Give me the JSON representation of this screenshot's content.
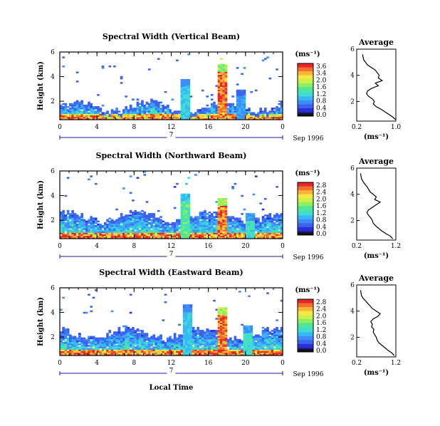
{
  "chart_data": [
    {
      "type": "heatmap",
      "title": "Spectral Width (Vertical Beam)",
      "beam": "vertical",
      "ylabel": "Height (km)",
      "y_ticks": [
        "6",
        "4",
        "2"
      ],
      "xlabel": "",
      "x_ticks": [
        "0",
        "4",
        "8",
        "12",
        "16",
        "20",
        "0"
      ],
      "xlim": [
        0,
        24
      ],
      "ylim": [
        0.5,
        6
      ],
      "date_marker": "7",
      "date_label": "Sep 1996",
      "colorbar": {
        "unit": "(ms⁻¹)",
        "labels": [
          "3.6",
          "3.4",
          "2.0",
          "1.6",
          "1.2",
          "0.8",
          "0.4",
          "0.0"
        ]
      },
      "events": [
        {
          "time": 13.6,
          "top": 3.8,
          "max_width": 1.6
        },
        {
          "time": 17.5,
          "top": 5.0,
          "max_width": 3.6
        },
        {
          "time": 19.6,
          "top": 3.0,
          "max_width": 1.2
        }
      ],
      "average_profile": {
        "title": "Average",
        "xlabel": "(ms⁻¹)",
        "x_ticks": [
          "0.2",
          "1.0"
        ],
        "y_ticks": [
          "6",
          "4",
          "2"
        ],
        "xlim": [
          0.2,
          1.0
        ],
        "ylim": [
          0.5,
          6
        ],
        "height": [
          5.6,
          5.2,
          5.0,
          4.8,
          4.6,
          4.4,
          4.2,
          4.0,
          3.8,
          3.6,
          3.4,
          3.2,
          3.0,
          2.8,
          2.6,
          2.4,
          2.2,
          2.0,
          1.8,
          1.6,
          1.4,
          1.2,
          1.0,
          0.8,
          0.6
        ],
        "width": [
          0.32,
          0.34,
          0.38,
          0.42,
          0.5,
          0.58,
          0.62,
          0.66,
          0.64,
          0.72,
          0.58,
          0.64,
          0.5,
          0.42,
          0.4,
          0.44,
          0.52,
          0.56,
          0.54,
          0.6,
          0.7,
          0.78,
          0.86,
          0.94,
          1.0
        ]
      }
    },
    {
      "type": "heatmap",
      "title": "Spectral Width (Northward Beam)",
      "beam": "northward",
      "ylabel": "Height (km)",
      "y_ticks": [
        "6",
        "4",
        "2"
      ],
      "xlabel": "",
      "x_ticks": [
        "0",
        "4",
        "8",
        "12",
        "16",
        "20",
        "0"
      ],
      "xlim": [
        0,
        24
      ],
      "ylim": [
        0.5,
        6
      ],
      "date_marker": "7",
      "date_label": "Sep 1996",
      "colorbar": {
        "unit": "(ms⁻¹)",
        "labels": [
          "2.8",
          "2.4",
          "2.0",
          "1.6",
          "1.2",
          "0.8",
          "0.4",
          "0.0"
        ]
      },
      "events": [
        {
          "time": 13.6,
          "top": 4.2,
          "max_width": 1.6
        },
        {
          "time": 17.5,
          "top": 3.8,
          "max_width": 2.8
        },
        {
          "time": 20.5,
          "top": 2.6,
          "max_width": 1.4
        }
      ],
      "average_profile": {
        "title": "Average",
        "xlabel": "(ms⁻¹)",
        "x_ticks": [
          "0.2",
          "1.2"
        ],
        "y_ticks": [
          "6",
          "4",
          "2"
        ],
        "xlim": [
          0.2,
          1.2
        ],
        "ylim": [
          0.5,
          6
        ],
        "height": [
          5.6,
          5.2,
          5.0,
          4.8,
          4.6,
          4.4,
          4.2,
          4.0,
          3.8,
          3.6,
          3.4,
          3.2,
          3.0,
          2.8,
          2.6,
          2.4,
          2.2,
          2.0,
          1.8,
          1.6,
          1.4,
          1.2,
          1.0,
          0.8,
          0.6
        ],
        "width": [
          0.3,
          0.32,
          0.36,
          0.4,
          0.46,
          0.5,
          0.54,
          0.62,
          0.7,
          0.66,
          0.8,
          0.7,
          0.6,
          0.5,
          0.46,
          0.5,
          0.56,
          0.6,
          0.62,
          0.68,
          0.76,
          0.84,
          0.94,
          1.06,
          1.12
        ]
      }
    },
    {
      "type": "heatmap",
      "title": "Spectral Width (Eastward Beam)",
      "beam": "eastward",
      "ylabel": "Height (km)",
      "y_ticks": [
        "6",
        "4",
        "2"
      ],
      "xlabel": "Local Time",
      "x_ticks": [
        "0",
        "4",
        "8",
        "12",
        "16",
        "20",
        "0"
      ],
      "xlim": [
        0,
        24
      ],
      "ylim": [
        0.5,
        6
      ],
      "date_marker": "7",
      "date_label": "Sep 1996",
      "colorbar": {
        "unit": "(ms⁻¹)",
        "labels": [
          "2.8",
          "2.4",
          "2.0",
          "1.6",
          "1.2",
          "0.8",
          "0.4",
          "0.0"
        ]
      },
      "events": [
        {
          "time": 13.8,
          "top": 4.6,
          "max_width": 1.2
        },
        {
          "time": 17.5,
          "top": 4.4,
          "max_width": 2.8
        },
        {
          "time": 20.3,
          "top": 2.9,
          "max_width": 1.4
        }
      ],
      "average_profile": {
        "title": "Average",
        "xlabel": "(ms⁻¹)",
        "x_ticks": [
          "0.2",
          "1.2"
        ],
        "y_ticks": [
          "6",
          "4",
          "2"
        ],
        "xlim": [
          0.2,
          1.2
        ],
        "ylim": [
          0.5,
          6
        ],
        "height": [
          5.6,
          5.2,
          5.0,
          4.8,
          4.6,
          4.4,
          4.2,
          4.0,
          3.8,
          3.6,
          3.4,
          3.2,
          3.0,
          2.8,
          2.6,
          2.4,
          2.2,
          2.0,
          1.8,
          1.6,
          1.4,
          1.2,
          1.0,
          0.8,
          0.6
        ],
        "width": [
          0.3,
          0.32,
          0.36,
          0.42,
          0.48,
          0.54,
          0.6,
          0.7,
          0.8,
          0.74,
          0.62,
          0.56,
          0.6,
          0.58,
          0.64,
          0.62,
          0.66,
          0.7,
          0.72,
          0.76,
          0.84,
          0.92,
          1.0,
          1.1,
          1.16
        ]
      }
    }
  ]
}
